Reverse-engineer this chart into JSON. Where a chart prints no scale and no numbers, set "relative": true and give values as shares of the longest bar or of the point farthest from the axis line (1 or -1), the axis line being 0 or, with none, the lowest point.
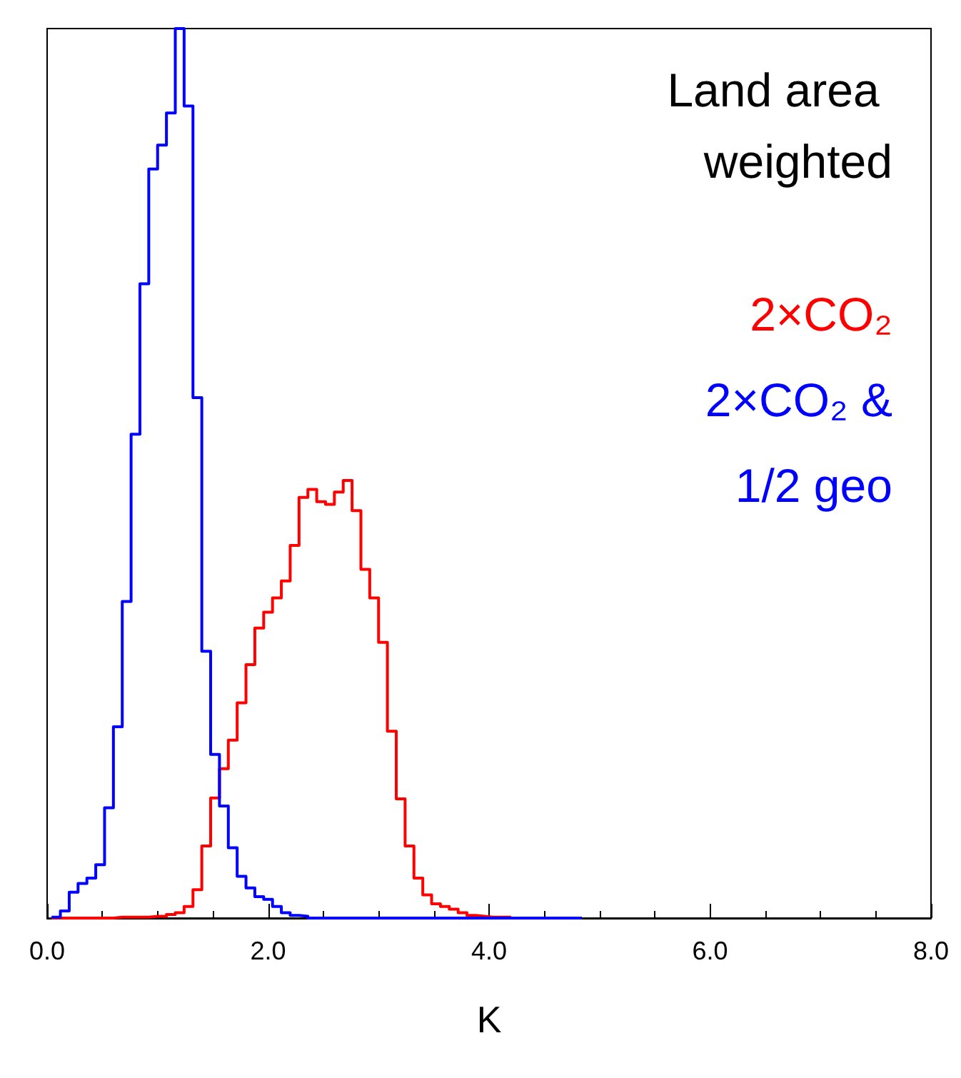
{
  "chart_data": {
    "type": "step",
    "title": "Land area weighted",
    "xlabel": "K",
    "relative": true,
    "grid": false,
    "xlim": [
      0,
      8
    ],
    "xticks": [
      {
        "value": 0,
        "label": "0.0"
      },
      {
        "value": 2,
        "label": "2.0"
      },
      {
        "value": 4,
        "label": "4.0"
      },
      {
        "value": 6,
        "label": "6.0"
      },
      {
        "value": 8,
        "label": "8.0"
      }
    ],
    "x": [
      0.04,
      0.12,
      0.2,
      0.28,
      0.36,
      0.44,
      0.52,
      0.6,
      0.68,
      0.76,
      0.84,
      0.92,
      1,
      1.08,
      1.16,
      1.24,
      1.32,
      1.4,
      1.48,
      1.56,
      1.64,
      1.72,
      1.8,
      1.88,
      1.96,
      2.04,
      2.12,
      2.2,
      2.28,
      2.36,
      2.44,
      2.52,
      2.6,
      2.68,
      2.76,
      2.84,
      2.92,
      3,
      3.08,
      3.16,
      3.24,
      3.32,
      3.4,
      3.48,
      3.56,
      3.64,
      3.72,
      3.8,
      3.88,
      3.96,
      4.04,
      4.12,
      4.2,
      4.28,
      4.36,
      4.44,
      4.52,
      4.6,
      4.68,
      4.76,
      4.84
    ],
    "series": [
      {
        "name": "2×CO₂",
        "color": "#ff0000",
        "values": [
          0,
          0,
          0,
          0,
          0,
          0,
          0,
          0.001,
          0.001,
          0.001,
          0.001,
          0.002,
          0.002,
          0.004,
          0.006,
          0.013,
          0.032,
          0.081,
          0.135,
          0.168,
          0.2,
          0.242,
          0.285,
          0.326,
          0.344,
          0.36,
          0.379,
          0.419,
          0.473,
          0.482,
          0.468,
          0.465,
          0.479,
          0.492,
          0.458,
          0.392,
          0.36,
          0.31,
          0.21,
          0.134,
          0.081,
          0.045,
          0.026,
          0.016,
          0.013,
          0.01,
          0.006,
          0.003,
          0.002,
          0.001,
          0.001,
          0.001,
          0.001,
          null,
          null,
          null,
          null,
          null,
          null,
          null,
          null
        ]
      },
      {
        "name": "2×CO₂ & 1/2 geo",
        "color": "#0000ff",
        "values": [
          0.001,
          0.008,
          0.029,
          0.039,
          0.045,
          0.06,
          0.124,
          0.215,
          0.356,
          0.544,
          0.713,
          0.842,
          0.869,
          0.905,
          1,
          0.913,
          0.585,
          0.3,
          0.184,
          0.126,
          0.079,
          0.047,
          0.034,
          0.024,
          0.021,
          0.013,
          0.006,
          0.003,
          0.002,
          0,
          0,
          0,
          0,
          0,
          0,
          0,
          0,
          0,
          0,
          0,
          0,
          0,
          0,
          0,
          0,
          0,
          0,
          0,
          0,
          0,
          0,
          0,
          0,
          0,
          0,
          0,
          0,
          0,
          0,
          0,
          0
        ]
      }
    ]
  }
}
